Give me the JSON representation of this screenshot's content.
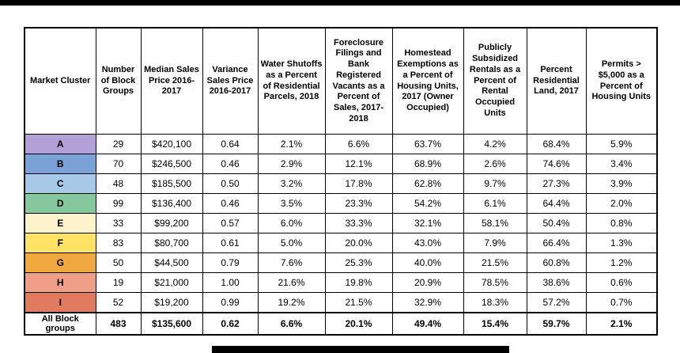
{
  "chart_data": {
    "type": "table",
    "columns": [
      "Market Cluster",
      "Number of Block Groups",
      "Median Sales Price 2016-2017",
      "Variance Sales Price 2016-2017",
      "Water Shutoffs as a Percent of Residential Parcels, 2018",
      "Foreclosure Filings and Bank Registered Vacants as a Percent of Sales, 2017-2018",
      "Homestead Exemptions as a Percent of Housing Units, 2017 (Owner Occupied)",
      "Publicly Subsidized Rentals as a Percent of Rental Occupied Units",
      "Percent Residential Land, 2017",
      "Permits > $5,000 as a Percent of Housing Units"
    ],
    "rows": [
      {
        "cluster": "A",
        "color": "#b3a0d6",
        "values": [
          "29",
          "$420,100",
          "0.64",
          "2.1%",
          "6.6%",
          "63.7%",
          "4.2%",
          "68.4%",
          "5.9%"
        ]
      },
      {
        "cluster": "B",
        "color": "#7aa2d6",
        "values": [
          "70",
          "$246,500",
          "0.46",
          "2.9%",
          "12.1%",
          "68.9%",
          "2.6%",
          "74.6%",
          "3.4%"
        ]
      },
      {
        "cluster": "C",
        "color": "#a6c9e8",
        "values": [
          "48",
          "$185,500",
          "0.50",
          "3.2%",
          "17.8%",
          "62.8%",
          "9.7%",
          "27.3%",
          "3.9%"
        ]
      },
      {
        "cluster": "D",
        "color": "#86c89e",
        "values": [
          "99",
          "$136,400",
          "0.46",
          "3.5%",
          "23.3%",
          "54.2%",
          "6.1%",
          "64.4%",
          "2.0%"
        ]
      },
      {
        "cluster": "E",
        "color": "#fdf2cc",
        "values": [
          "33",
          "$99,200",
          "0.57",
          "6.0%",
          "33.3%",
          "32.1%",
          "58.1%",
          "50.4%",
          "0.8%"
        ]
      },
      {
        "cluster": "F",
        "color": "#ffe266",
        "values": [
          "83",
          "$80,700",
          "0.61",
          "5.0%",
          "20.0%",
          "43.0%",
          "7.9%",
          "66.4%",
          "1.3%"
        ]
      },
      {
        "cluster": "G",
        "color": "#f0a83e",
        "values": [
          "50",
          "$44,500",
          "0.79",
          "7.6%",
          "25.3%",
          "40.0%",
          "21.5%",
          "60.8%",
          "1.2%"
        ]
      },
      {
        "cluster": "H",
        "color": "#ef9f88",
        "values": [
          "19",
          "$21,000",
          "1.00",
          "21.6%",
          "19.8%",
          "20.9%",
          "78.5%",
          "38.6%",
          "0.6%"
        ]
      },
      {
        "cluster": "I",
        "color": "#e07b5f",
        "values": [
          "52",
          "$19,200",
          "0.99",
          "19.2%",
          "21.5%",
          "32.9%",
          "18.3%",
          "57.2%",
          "0.7%"
        ]
      }
    ],
    "footer": {
      "label": "All Block groups",
      "values": [
        "483",
        "$135,600",
        "0.62",
        "6.6%",
        "20.1%",
        "49.4%",
        "15.4%",
        "59.7%",
        "2.1%"
      ]
    }
  }
}
